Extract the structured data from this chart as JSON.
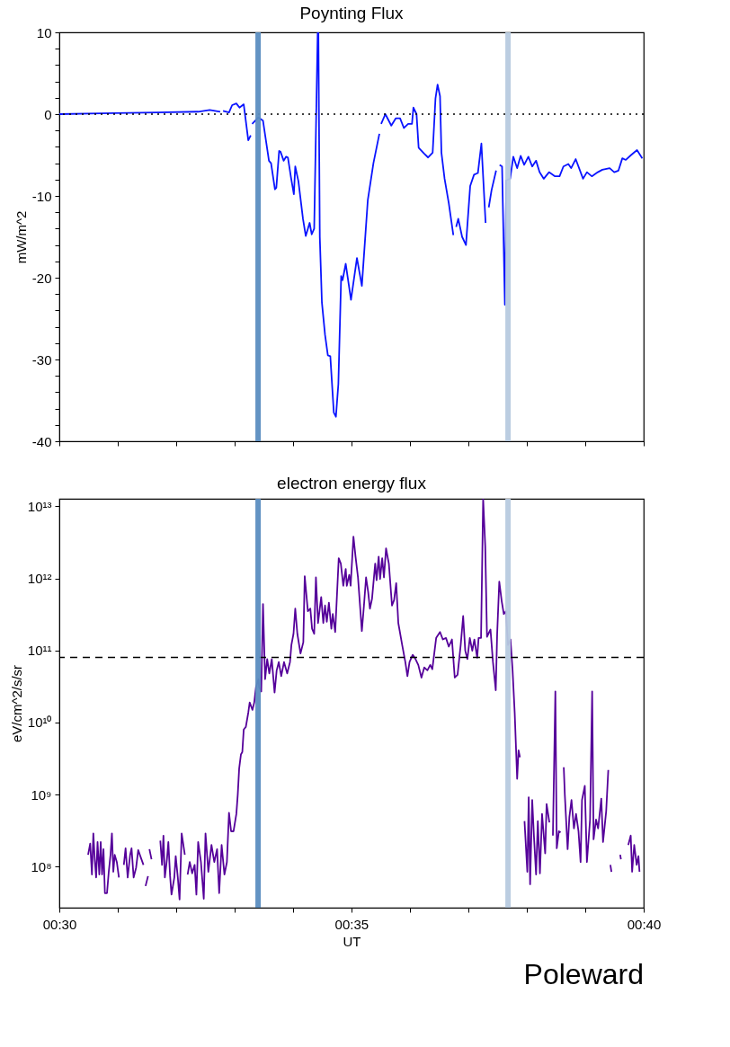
{
  "chart_data": [
    {
      "type": "line",
      "title": "Poynting Flux",
      "ylabel": "mW/m^2",
      "tick_labels": "y",
      "xlim": [
        0.5,
        0.6667
      ],
      "xticks": [
        {
          "value": 0.5,
          "label": null
        },
        {
          "value": 0.5167,
          "label": null
        },
        {
          "value": 0.5333,
          "label": null
        },
        {
          "value": 0.55,
          "label": null
        },
        {
          "value": 0.5667,
          "label": null
        },
        {
          "value": 0.5833,
          "label": null
        },
        {
          "value": 0.6,
          "label": null
        },
        {
          "value": 0.6167,
          "label": null
        },
        {
          "value": 0.6333,
          "label": null
        },
        {
          "value": 0.65,
          "label": null
        },
        {
          "value": 0.6667,
          "label": null
        }
      ],
      "ylim": [
        -40,
        10
      ],
      "yticks": [
        -40,
        {
          "value": -38,
          "label": null
        },
        {
          "value": -36,
          "label": null
        },
        {
          "value": -34,
          "label": null
        },
        {
          "value": -32,
          "label": null
        },
        -30,
        {
          "value": -28,
          "label": null
        },
        {
          "value": -26,
          "label": null
        },
        {
          "value": -24,
          "label": null
        },
        {
          "value": -22,
          "label": null
        },
        -20,
        {
          "value": -18,
          "label": null
        },
        {
          "value": -16,
          "label": null
        },
        {
          "value": -14,
          "label": null
        },
        {
          "value": -12,
          "label": null
        },
        -10,
        {
          "value": -8,
          "label": null
        },
        {
          "value": -6,
          "label": null
        },
        {
          "value": -4,
          "label": null
        },
        {
          "value": -2,
          "label": null
        },
        0,
        {
          "value": 2,
          "label": null
        },
        {
          "value": 4,
          "label": null
        },
        {
          "value": 6,
          "label": null
        },
        {
          "value": 8,
          "label": null
        },
        10
      ],
      "ref_lines": [
        {
          "axis": "y",
          "value": 0,
          "color": "#000000",
          "line_style": "dotted"
        },
        {
          "axis": "x",
          "value": 0.5567,
          "color": "#5b8dc0"
        },
        {
          "axis": "x",
          "value": 0.628,
          "color": "#b7cadf"
        }
      ],
      "x": [
        0.5,
        0.5118,
        0.5278,
        0.5396,
        0.5429,
        0.5459,
        0.5463,
        0.5467,
        0.5484,
        0.5493,
        0.5505,
        0.5514,
        0.5526,
        0.5539,
        0.5546,
        0.5548,
        0.555,
        0.5568,
        0.5581,
        0.5598,
        0.5604,
        0.5615,
        0.5619,
        0.5627,
        0.5631,
        0.564,
        0.5647,
        0.5652,
        0.5661,
        0.5669,
        0.5673,
        0.5682,
        0.5695,
        0.5703,
        0.5714,
        0.572,
        0.5727,
        0.5737,
        0.5739,
        0.5743,
        0.5749,
        0.5758,
        0.5766,
        0.5773,
        0.5783,
        0.5789,
        0.5796,
        0.5804,
        0.5808,
        0.5817,
        0.5832,
        0.5849,
        0.5863,
        0.588,
        0.5896,
        0.5913,
        0.5915,
        0.5918,
        0.593,
        0.5947,
        0.596,
        0.5972,
        0.5983,
        0.5995,
        0.6006,
        0.601,
        0.6019,
        0.6025,
        0.604,
        0.6052,
        0.6065,
        0.6073,
        0.6079,
        0.6086,
        0.609,
        0.6099,
        0.6111,
        0.6124,
        0.6128,
        0.6132,
        0.6138,
        0.6149,
        0.616,
        0.6172,
        0.6183,
        0.6194,
        0.6204,
        0.6216,
        0.622,
        0.6225,
        0.6233,
        0.6246,
        0.625,
        0.6256,
        0.6263,
        0.6271,
        0.6275,
        0.6286,
        0.6295,
        0.6306,
        0.6316,
        0.6326,
        0.6338,
        0.6349,
        0.636,
        0.637,
        0.6382,
        0.6397,
        0.6414,
        0.6427,
        0.6438,
        0.6452,
        0.646,
        0.6473,
        0.6494,
        0.6505,
        0.6519,
        0.6536,
        0.6549,
        0.657,
        0.6583,
        0.6595,
        0.6606,
        0.6616,
        0.6631,
        0.6648,
        0.6663
      ],
      "series": [
        {
          "color": "#0a14ff",
          "values": [
            0,
            0.1,
            0.2,
            0.3,
            0.5,
            0.3,
            null,
            0.4,
            0.2,
            1.1,
            1.3,
            0.8,
            1.2,
            -3.2,
            -2.6,
            null,
            -1.2,
            -0.4,
            -0.8,
            -5.7,
            -6.0,
            -9.2,
            -9.0,
            -4.5,
            -4.6,
            -5.7,
            -5.2,
            -5.3,
            -7.8,
            -9.8,
            -6.4,
            -8.2,
            -12.8,
            -14.9,
            -13.3,
            -14.7,
            -14.0,
            10,
            10,
            -15,
            -23,
            -27,
            -29.5,
            -29.6,
            -36.5,
            -37,
            -33,
            -19.8,
            -20.3,
            -18.3,
            -22.7,
            -17.6,
            -21,
            -10.5,
            -6.0,
            -2.4,
            null,
            -1.2,
            0,
            -1.4,
            -0.5,
            -0.5,
            -1.7,
            -1.2,
            -1.2,
            0.8,
            0,
            -4.1,
            -4.8,
            -5.3,
            -4.7,
            1.9,
            3.6,
            2.2,
            -4.7,
            -7.9,
            -10.9,
            -14.8,
            null,
            -13.8,
            -12.8,
            -15,
            -16,
            -8.8,
            -7.4,
            -7.2,
            -3.6,
            -13.3,
            null,
            -11.4,
            -9.3,
            -6.9,
            null,
            -6.2,
            -6.4,
            -23.3,
            -8.1,
            -7.9,
            -5.2,
            -6.6,
            -5.1,
            -6.2,
            -5.2,
            -6.4,
            -5.7,
            -7.1,
            -7.9,
            -7.1,
            -7.6,
            -7.6,
            -6.4,
            -6.1,
            -6.6,
            -5.5,
            -7.9,
            -7.1,
            -7.6,
            -7.1,
            -6.8,
            -6.6,
            -7.1,
            -6.9,
            -5.4,
            -5.6,
            -5.0,
            -4.4,
            -5.4
          ]
        }
      ]
    },
    {
      "type": "line",
      "title": "electron energy flux",
      "xlabel": "UT",
      "ylabel": "eV/cm^2/s/sr",
      "log": "y",
      "xlim": [
        0.5,
        0.6667
      ],
      "xticks": [
        {
          "value": 0.5,
          "label": "00:30"
        },
        {
          "value": 0.5167,
          "label": null
        },
        {
          "value": 0.5333,
          "label": null
        },
        {
          "value": 0.55,
          "label": null
        },
        {
          "value": 0.5667,
          "label": null
        },
        {
          "value": 0.5833,
          "label": "00:35"
        },
        {
          "value": 0.6,
          "label": null
        },
        {
          "value": 0.6167,
          "label": null
        },
        {
          "value": 0.6333,
          "label": null
        },
        {
          "value": 0.65,
          "label": null
        },
        {
          "value": 0.6667,
          "label": "00:40"
        }
      ],
      "ylim": [
        27000000,
        12700000000000
      ],
      "yticks": [
        {
          "value": 100000000.0,
          "label": "10⁸"
        },
        {
          "value": 1000000000.0,
          "label": "10⁹"
        },
        {
          "value": 10000000000.0,
          "label": "10¹⁰"
        },
        {
          "value": 100000000000.0,
          "label": "10¹¹"
        },
        {
          "value": 1000000000000.0,
          "label": "10¹²"
        },
        {
          "value": 10000000000000.0,
          "label": "10¹³"
        }
      ],
      "ref_lines": [
        {
          "axis": "y",
          "value": 80000000000.0,
          "color": "#000000",
          "line_style": "dashed"
        },
        {
          "axis": "x",
          "value": 0.5567,
          "color": "#5b8dc0"
        },
        {
          "axis": "x",
          "value": 0.628,
          "color": "#b7cadf"
        }
      ],
      "annotations": [
        "Poleward"
      ],
      "x": [
        0.5082,
        0.5088,
        0.5093,
        0.5097,
        0.5101,
        0.5105,
        0.5109,
        0.5114,
        0.5118,
        0.5122,
        0.5126,
        0.513,
        0.5136,
        0.5141,
        0.5146,
        0.515,
        0.5154,
        0.5158,
        0.5164,
        0.517,
        0.5177,
        0.5184,
        0.5189,
        0.5195,
        0.5202,
        0.5206,
        0.5212,
        0.5219,
        0.5225,
        0.5231,
        0.524,
        0.5242,
        0.5246,
        0.5253,
        0.5254,
        0.5257,
        0.5263,
        0.5275,
        0.5288,
        0.5293,
        0.5297,
        0.5301,
        0.5307,
        0.5311,
        0.5316,
        0.532,
        0.5328,
        0.5332,
        0.5338,
        0.5343,
        0.5349,
        0.5358,
        0.5362,
        0.5366,
        0.5372,
        0.5379,
        0.5386,
        0.5391,
        0.5396,
        0.5404,
        0.5412,
        0.5417,
        0.5425,
        0.5434,
        0.5442,
        0.545,
        0.5456,
        0.5463,
        0.5471,
        0.5478,
        0.5484,
        0.549,
        0.5497,
        0.5505,
        0.5509,
        0.5513,
        0.5518,
        0.5522,
        0.5526,
        0.5532,
        0.5539,
        0.5543,
        0.5551,
        0.5556,
        0.5561,
        0.5568,
        0.557,
        0.5576,
        0.5581,
        0.5587,
        0.5593,
        0.5599,
        0.5606,
        0.5614,
        0.562,
        0.5626,
        0.5633,
        0.5641,
        0.565,
        0.5658,
        0.5662,
        0.5668,
        0.5673,
        0.5679,
        0.5688,
        0.5696,
        0.57,
        0.5709,
        0.5716,
        0.5721,
        0.5727,
        0.5732,
        0.5738,
        0.5747,
        0.5753,
        0.5758,
        0.5763,
        0.5769,
        0.5776,
        0.578,
        0.5787,
        0.5797,
        0.5803,
        0.581,
        0.5817,
        0.582,
        0.5827,
        0.5831,
        0.5839,
        0.5845,
        0.5852,
        0.5863,
        0.5869,
        0.5875,
        0.5881,
        0.5886,
        0.5892,
        0.5901,
        0.5905,
        0.5911,
        0.5915,
        0.5921,
        0.5926,
        0.5932,
        0.594,
        0.5949,
        0.5955,
        0.5961,
        0.5967,
        0.5978,
        0.5987,
        0.5993,
        0.5999,
        0.6008,
        0.6016,
        0.6024,
        0.6033,
        0.6041,
        0.605,
        0.6058,
        0.6064,
        0.6075,
        0.6086,
        0.6094,
        0.6103,
        0.6111,
        0.612,
        0.6128,
        0.6136,
        0.6145,
        0.6152,
        0.6158,
        0.6164,
        0.6171,
        0.6178,
        0.6184,
        0.6192,
        0.6196,
        0.6203,
        0.6209,
        0.6215,
        0.622,
        0.623,
        0.6237,
        0.6245,
        0.6249,
        0.6255,
        0.6262,
        0.6268,
        0.6274,
        0.628,
        0.6287,
        0.6293,
        0.6299,
        0.6306,
        0.631,
        0.6314,
        0.6321,
        0.6327,
        0.6335,
        0.6339,
        0.6343,
        0.6349,
        0.6354,
        0.636,
        0.6365,
        0.6371,
        0.6377,
        0.6386,
        0.639,
        0.6398,
        0.6403,
        0.6408,
        0.6415,
        0.6419,
        0.6425,
        0.643,
        0.6434,
        0.6439,
        0.6442,
        0.645,
        0.6455,
        0.6461,
        0.6468,
        0.6474,
        0.6481,
        0.6487,
        0.6491,
        0.6499,
        0.6505,
        0.6514,
        0.652,
        0.6524,
        0.6531,
        0.6537,
        0.6546,
        0.6551,
        0.656,
        0.6566,
        0.6569,
        0.6572,
        0.6575,
        0.6588,
        0.66,
        0.6602,
        0.6613,
        0.6623,
        0.663,
        0.6634,
        0.664,
        0.6647,
        0.6652,
        0.6655
      ],
      "series": [
        {
          "color": "#55009a",
          "values": [
            146000000.0,
            210000000.0,
            78000000.0,
            290000000.0,
            127000000.0,
            71000000.0,
            220000000.0,
            78000000.0,
            220000000.0,
            78000000.0,
            175000000.0,
            43000000.0,
            43000000.0,
            85000000.0,
            146000000.0,
            290000000.0,
            85000000.0,
            146000000.0,
            116000000.0,
            71000000.0,
            null,
            106000000.0,
            180000000.0,
            71000000.0,
            146000000.0,
            180000000.0,
            71000000.0,
            97000000.0,
            170000000.0,
            140000000.0,
            106000000.0,
            null,
            54000000.0,
            74000000.0,
            null,
            175000000.0,
            127000000.0,
            null,
            230000000.0,
            106000000.0,
            270000000.0,
            71000000.0,
            127000000.0,
            220000000.0,
            74000000.0,
            41000000.0,
            71000000.0,
            140000000.0,
            71000000.0,
            35000000.0,
            290000000.0,
            146000000.0,
            null,
            78000000.0,
            116000000.0,
            81000000.0,
            106000000.0,
            41000000.0,
            220000000.0,
            116000000.0,
            36000000.0,
            290000000.0,
            85000000.0,
            200000000.0,
            116000000.0,
            175000000.0,
            43000000.0,
            200000000.0,
            78000000.0,
            116000000.0,
            560000000.0,
            310000000.0,
            310000000.0,
            540000000.0,
            1000000000.0,
            2300000000.0,
            3600000000.0,
            3900000000.0,
            8000000000.0,
            8700000000.0,
            13700000000.0,
            19000000000.0,
            15000000000.0,
            19000000000.0,
            31000000000.0,
            40000000000.0,
            31000000000.0,
            27000000000.0,
            440000000000.0,
            40000000000.0,
            76000000000.0,
            48000000000.0,
            76000000000.0,
            26000000000.0,
            53000000000.0,
            69000000000.0,
            44000000000.0,
            69000000000.0,
            48000000000.0,
            69000000000.0,
            119000000000.0,
            170000000000.0,
            380000000000.0,
            170000000000.0,
            91000000000.0,
            130000000000.0,
            1070000000000.0,
            350000000000.0,
            380000000000.0,
            200000000000.0,
            170000000000.0,
            1030000000000.0,
            240000000000.0,
            550000000000.0,
            240000000000.0,
            420000000000.0,
            250000000000.0,
            460000000000.0,
            200000000000.0,
            320000000000.0,
            180000000000.0,
            1900000000000.0,
            1600000000000.0,
            790000000000.0,
            1350000000000.0,
            790000000000.0,
            1120000000000.0,
            790000000000.0,
            3800000000000.0,
            2000000000000.0,
            1030000000000.0,
            186000000000.0,
            420000000000.0,
            1030000000000.0,
            650000000000.0,
            380000000000.0,
            520000000000.0,
            1600000000000.0,
            940000000000.0,
            2000000000000.0,
            980000000000.0,
            1900000000000.0,
            1030000000000.0,
            2600000000000.0,
            1600000000000.0,
            420000000000.0,
            500000000000.0,
            860000000000.0,
            240000000000.0,
            119000000000.0,
            69000000000.0,
            44000000000.0,
            69000000000.0,
            87000000000.0,
            76000000000.0,
            63000000000.0,
            42000000000.0,
            58000000000.0,
            53000000000.0,
            63000000000.0,
            55000000000.0,
            149000000000.0,
            180000000000.0,
            142000000000.0,
            149000000000.0,
            113000000000.0,
            142000000000.0,
            42000000000.0,
            46000000000.0,
            119000000000.0,
            300000000000.0,
            99000000000.0,
            76000000000.0,
            149000000000.0,
            99000000000.0,
            142000000000.0,
            79000000000.0,
            149000000000.0,
            149000000000.0,
            12700000000000.0,
            2800000000000.0,
            155000000000.0,
            195000000000.0,
            69000000000.0,
            28000000000.0,
            170000000000.0,
            900000000000.0,
            480000000000.0,
            320000000000.0,
            350000000000.0,
            119000000000.0,
            142000000000.0,
            53000000000.0,
            13700000000.0,
            1660000000.0,
            4100000000.0,
            3300000000.0,
            null,
            430000000.0,
            85000000.0,
            920000000.0,
            57000000.0,
            840000000.0,
            260000000.0,
            78000000.0,
            430000000.0,
            81000000.0,
            540000000.0,
            153000000.0,
            740000000.0,
            410000000.0,
            null,
            270000000.0,
            27000000000.0,
            180000000.0,
            310000000.0,
            300000000.0,
            null,
            2400000000.0,
            1000000000.0,
            175000000.0,
            490000000.0,
            840000000.0,
            340000000.0,
            540000000.0,
            310000000.0,
            116000000.0,
            840000000.0,
            1320000000.0,
            116000000.0,
            450000000.0,
            27000000000.0,
            240000000.0,
            450000000.0,
            340000000.0,
            880000000.0,
            220000000.0,
            590000000.0,
            2200000000.0,
            null,
            106000000.0,
            85000000.0,
            null,
            146000000.0,
            127000000.0,
            null,
            200000000.0,
            270000000.0,
            85000000.0,
            200000000.0,
            106000000.0,
            140000000.0,
            85000000.0
          ]
        }
      ]
    }
  ]
}
